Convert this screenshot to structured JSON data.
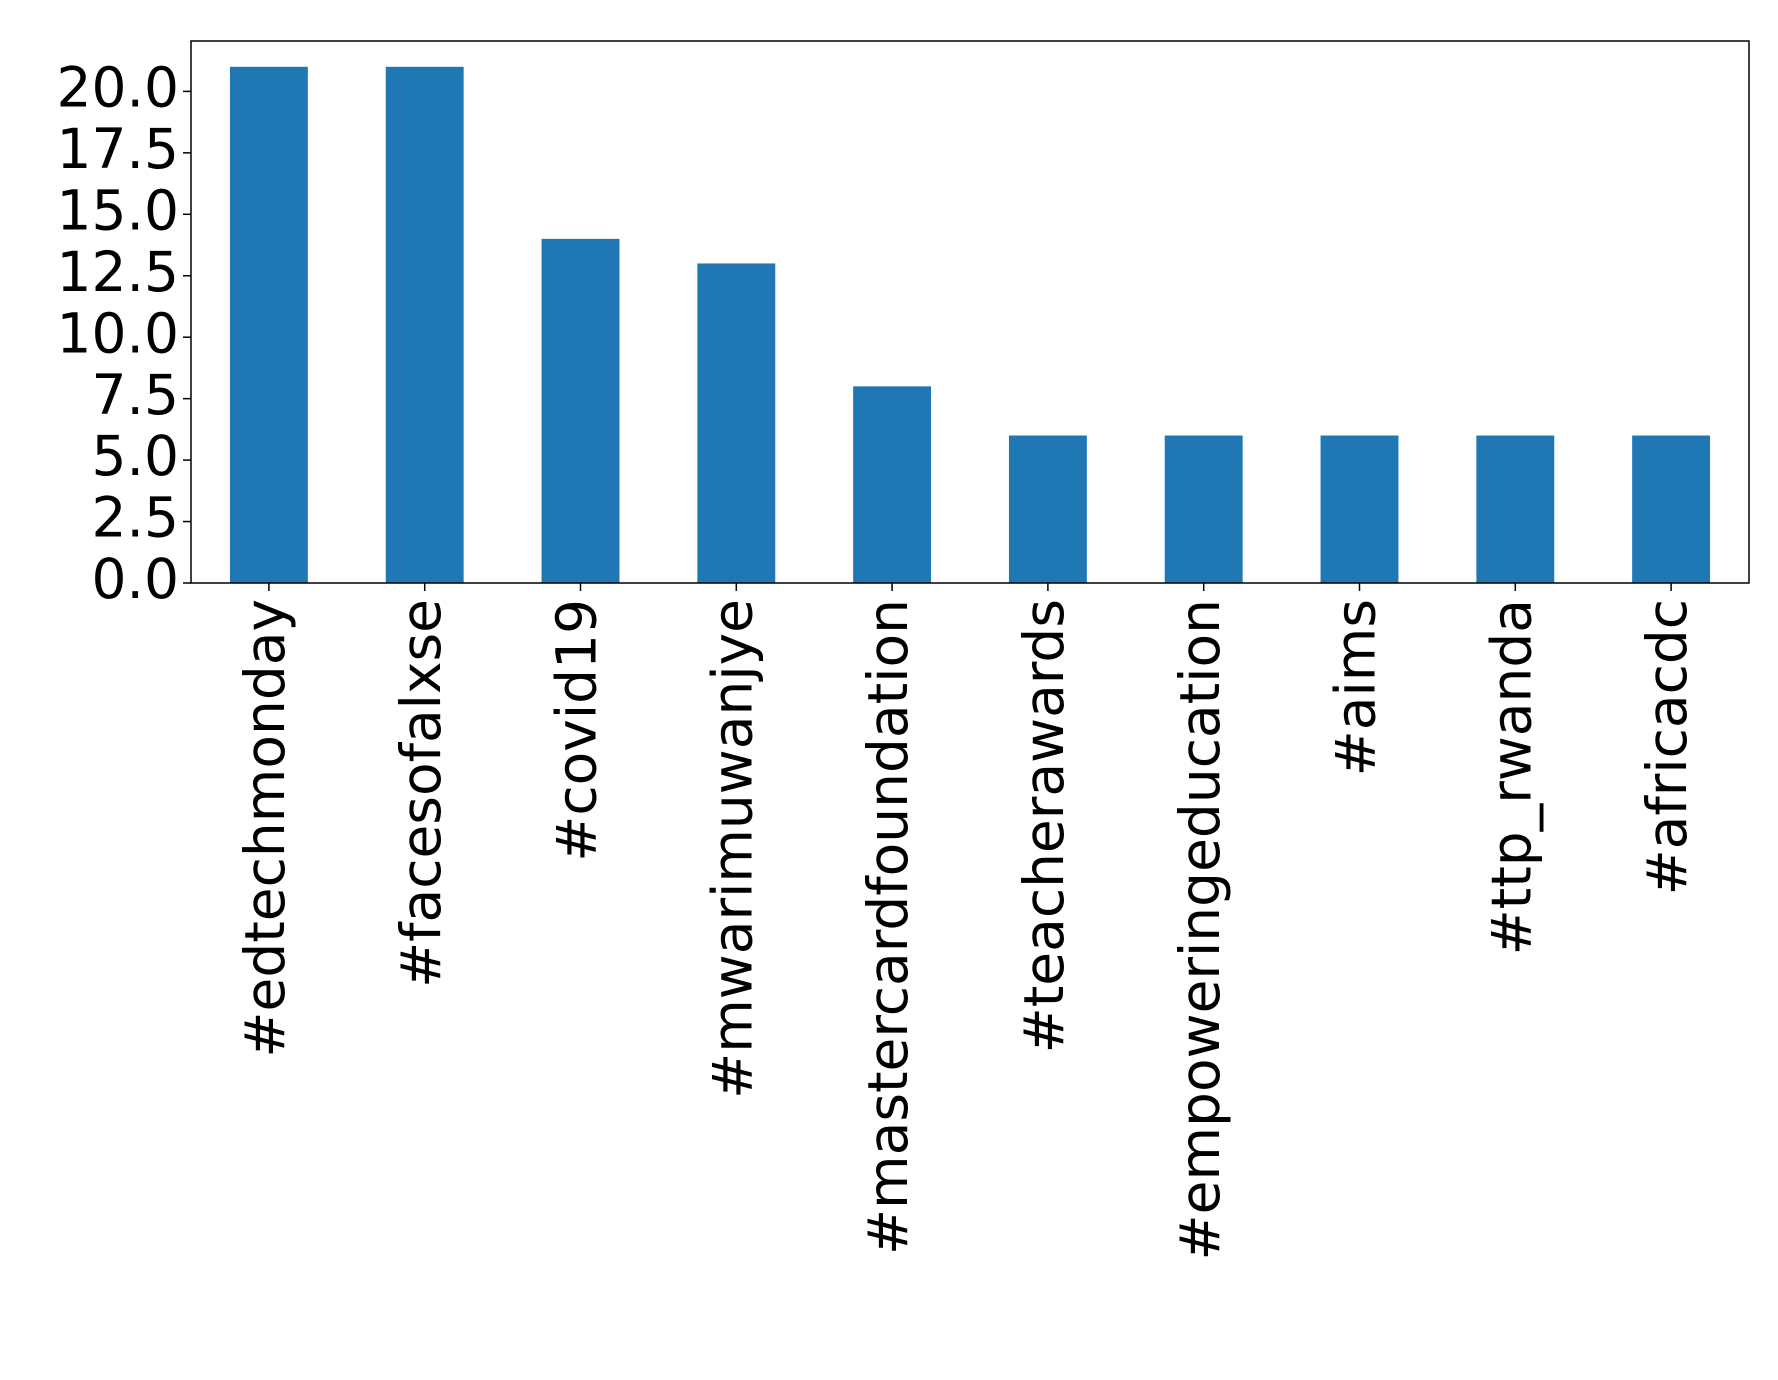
{
  "chart_data": {
    "type": "bar",
    "categories": [
      "#edtechmonday",
      "#facesofalxse",
      "#covid19",
      "#mwarimuwanjye",
      "#mastercardfoundation",
      "#teacherawards",
      "#empoweringeducation",
      "#aims",
      "#ttp_rwanda",
      "#africacdc"
    ],
    "values": [
      21,
      21,
      14,
      13,
      8,
      6,
      6,
      6,
      6,
      6
    ],
    "color": "#1f77b4",
    "ylim": [
      0,
      22.05
    ],
    "yticks": [
      {
        "value": 0,
        "label": "0.0"
      },
      {
        "value": 2.5,
        "label": "2.5"
      },
      {
        "value": 5,
        "label": "5.0"
      },
      {
        "value": 7.5,
        "label": "7.5"
      },
      {
        "value": 10,
        "label": "10.0"
      },
      {
        "value": 12.5,
        "label": "12.5"
      },
      {
        "value": 15,
        "label": "15.0"
      },
      {
        "value": 17.5,
        "label": "17.5"
      },
      {
        "value": 20,
        "label": "20.0"
      }
    ],
    "grid": false
  }
}
